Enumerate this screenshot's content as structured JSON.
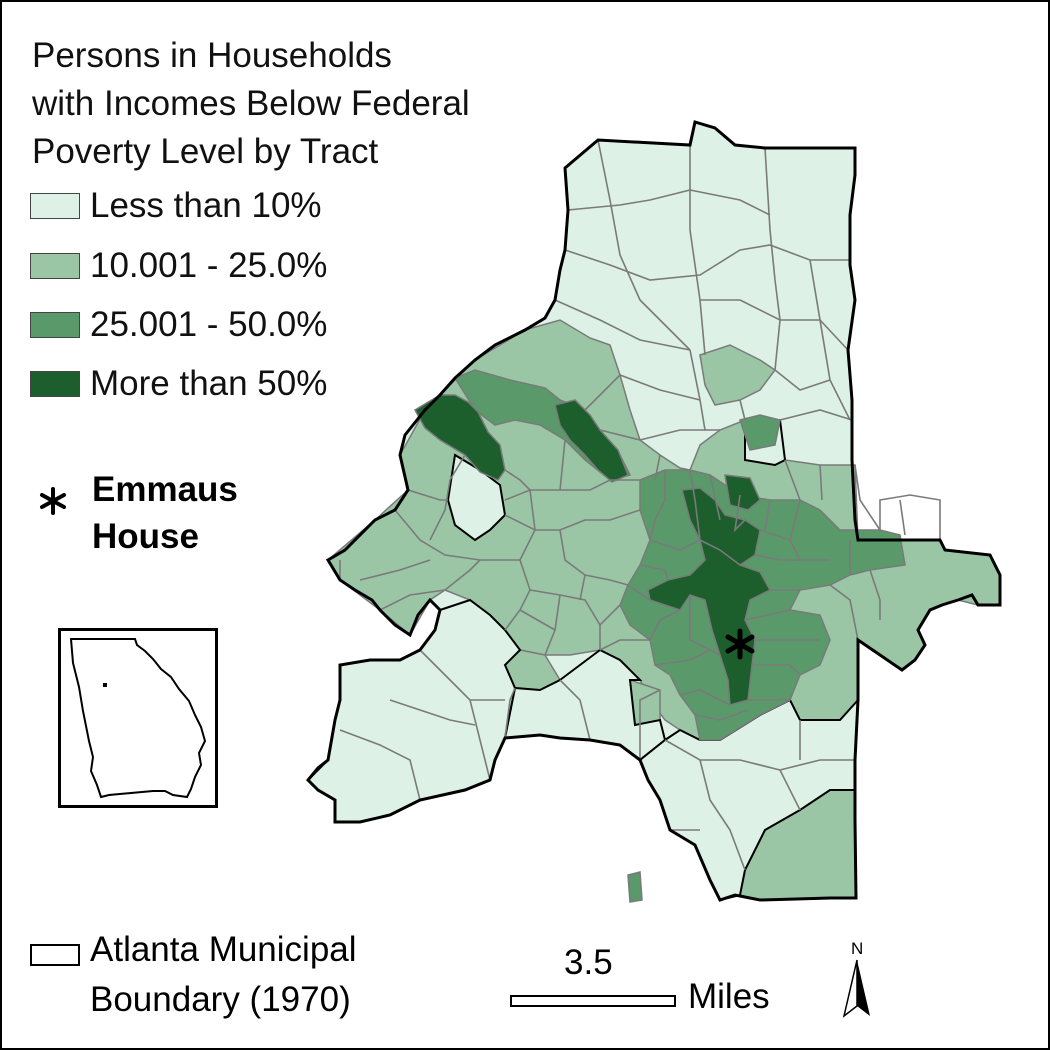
{
  "title": {
    "lines": [
      "Persons in Households",
      "with Incomes Below Federal",
      "Poverty Level by Tract"
    ]
  },
  "legend": {
    "classes": [
      {
        "label": "Less than 10%",
        "color": "#ddf1e6"
      },
      {
        "label": "10.001 - 25.0%",
        "color": "#9ac6a6"
      },
      {
        "label": "25.001 - 50.0%",
        "color": "#5a9a6a"
      },
      {
        "label": "More than 50%",
        "color": "#1c5e2c"
      }
    ],
    "tract_border_color": "#777777"
  },
  "marker": {
    "label_line1": "Emmaus",
    "label_line2": "House",
    "icon": "asterisk-icon"
  },
  "boundary_legend": {
    "line1": "Atlanta Municipal",
    "line2": "Boundary (1970)"
  },
  "scale": {
    "value": "3.5",
    "unit": "Miles"
  },
  "north": {
    "label": "N",
    "icon": "north-arrow-icon"
  },
  "inset": {
    "subject": "Georgia state outline"
  }
}
